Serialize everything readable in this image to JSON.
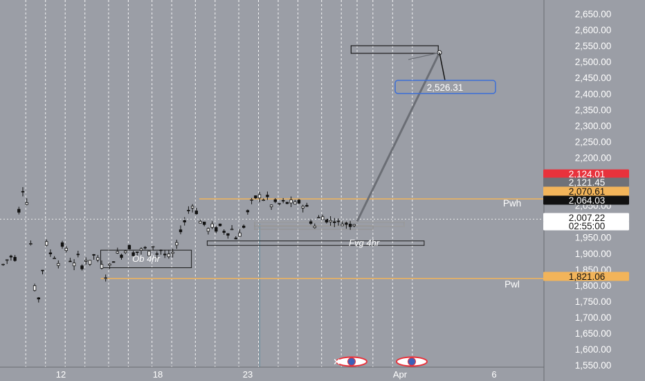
{
  "colors": {
    "background": "#9b9ea6",
    "candle": "#111111",
    "level_line": "#f2b45a",
    "projection": "#6b6e75",
    "target_box": "#3d6fd6",
    "tag_red": "#e8323c",
    "tag_gray": "#6f7178",
    "tag_orange": "#f2b45a",
    "tag_black": "#111111",
    "tag_white": "#ffffff"
  },
  "chart_data": {
    "type": "candlestick",
    "symbol_context": "Gold",
    "ylim": [
      1530,
      2680
    ],
    "y_ticks": [
      "2,650.00",
      "2,600.00",
      "2,550.00",
      "2,500.00",
      "2,450.00",
      "2,400.00",
      "2,350.00",
      "2,300.00",
      "2,250.00",
      "2,200.00",
      "2,150.00",
      "2,100.00",
      "2,050.00",
      "2,000.00",
      "1,950.00",
      "1,900.00",
      "1,850.00",
      "1,800.00",
      "1,750.00",
      "1,700.00",
      "1,650.00",
      "1,600.00",
      "1,550.00"
    ],
    "x_ticks": [
      {
        "label": "12",
        "bar": 19
      },
      {
        "label": "18",
        "bar": 52
      },
      {
        "label": "23",
        "bar": 80
      },
      {
        "label": "Apr",
        "bar": 131
      },
      {
        "label": "6",
        "bar": 163
      }
    ],
    "bar_count": 180,
    "anchor_points": [
      [
        0,
        1865
      ],
      [
        1,
        1880
      ],
      [
        2,
        1890
      ],
      [
        3,
        1885
      ],
      [
        4,
        2035
      ],
      [
        5,
        2100
      ],
      [
        6,
        2060
      ],
      [
        7,
        1930
      ],
      [
        8,
        1790
      ],
      [
        9,
        1760
      ],
      [
        10,
        1850
      ],
      [
        11,
        1930
      ],
      [
        12,
        1900
      ],
      [
        13,
        1890
      ],
      [
        14,
        1870
      ],
      [
        15,
        1925
      ],
      [
        16,
        1910
      ],
      [
        17,
        1880
      ],
      [
        18,
        1865
      ],
      [
        19,
        1890
      ],
      [
        20,
        1860
      ],
      [
        21,
        1880
      ],
      [
        22,
        1870
      ],
      [
        23,
        1895
      ],
      [
        24,
        1880
      ],
      [
        25,
        1860
      ],
      [
        26,
        1830
      ],
      [
        27,
        1860
      ],
      [
        28,
        1880
      ],
      [
        29,
        1900
      ],
      [
        30,
        1895
      ],
      [
        31,
        1910
      ],
      [
        32,
        1920
      ],
      [
        33,
        1900
      ],
      [
        34,
        1905
      ],
      [
        35,
        1910
      ],
      [
        36,
        1915
      ],
      [
        37,
        1900
      ],
      [
        38,
        1925
      ],
      [
        39,
        1900
      ],
      [
        40,
        1910
      ],
      [
        41,
        1895
      ],
      [
        42,
        1890
      ],
      [
        43,
        1900
      ],
      [
        44,
        1925
      ],
      [
        45,
        1975
      ],
      [
        46,
        2000
      ],
      [
        47,
        2035
      ],
      [
        48,
        2050
      ],
      [
        49,
        2030
      ],
      [
        50,
        2000
      ],
      [
        51,
        1990
      ],
      [
        52,
        1975
      ],
      [
        53,
        1985
      ],
      [
        54,
        1975
      ],
      [
        55,
        1985
      ],
      [
        56,
        1970
      ],
      [
        57,
        1965
      ],
      [
        58,
        1975
      ],
      [
        59,
        1950
      ],
      [
        60,
        1960
      ],
      [
        61,
        1985
      ],
      [
        62,
        2030
      ],
      [
        63,
        2060
      ],
      [
        64,
        2075
      ],
      [
        65,
        2080
      ],
      [
        66,
        2070
      ],
      [
        67,
        2075
      ],
      [
        68,
        2050
      ],
      [
        69,
        2060
      ],
      [
        70,
        2055
      ],
      [
        71,
        2060
      ],
      [
        72,
        2058
      ],
      [
        73,
        2060
      ],
      [
        74,
        2055
      ],
      [
        75,
        2060
      ],
      [
        76,
        2050
      ],
      [
        77,
        2045
      ],
      [
        78,
        2000
      ],
      [
        79,
        1985
      ],
      [
        80,
        2010
      ],
      [
        81,
        2015
      ],
      [
        82,
        2005
      ],
      [
        83,
        2000
      ],
      [
        84,
        2005
      ],
      [
        85,
        1995
      ],
      [
        86,
        1995
      ],
      [
        87,
        1993
      ],
      [
        88,
        1990
      ],
      [
        89,
        1995
      ]
    ],
    "last_bar": 89,
    "current_price": 2007.22,
    "countdown": "02:55:00",
    "price_tags": [
      {
        "value": 2124.01,
        "label": "2,124.01",
        "style": "red"
      },
      {
        "value": 2108.5,
        "label": "2,121.45",
        "style": "gray"
      },
      {
        "value": 2073.5,
        "label": "2,070.61",
        "style": "orange"
      },
      {
        "value": 2064.03,
        "label": "2,064.03",
        "style": "black"
      },
      {
        "value": 2007.22,
        "label": "2,007.22",
        "style": "white"
      },
      {
        "value": 1983.0,
        "label": "02:55:00",
        "style": "white"
      },
      {
        "value": 1821.06,
        "label": "1,821.06",
        "style": "orange"
      }
    ],
    "levels": [
      {
        "name": "Pwh",
        "value": 2070.61,
        "from_bar": 50
      },
      {
        "name": "Pwl",
        "value": 1821.06,
        "from_bar": 25
      }
    ],
    "zones": [
      {
        "label": "Ob 4hr",
        "from_bar": 25,
        "to_bar": 48,
        "top": 1910,
        "bottom": 1855
      },
      {
        "label": "Fvg 4hr",
        "from_bar": 52,
        "to_bar": 107,
        "top": 1939,
        "bottom": 1925
      },
      {
        "label": "",
        "from_bar": 64,
        "to_bar": 102,
        "top": 1998,
        "bottom": 1985
      },
      {
        "label": "",
        "from_bar": 64,
        "to_bar": 94,
        "top": 1987,
        "bottom": 1975
      }
    ],
    "projection": {
      "from_bar": 90,
      "from_value": 2000,
      "to_bar": 110,
      "to_value": 2526.31
    },
    "target": {
      "label": "2,526.31",
      "value": 2526.31,
      "box_from_bar": 89,
      "box_to_bar": 111,
      "box_top": 2560,
      "box_bottom": 2535
    },
    "vertical_dotted_bars": [
      6,
      11,
      16,
      21,
      27,
      32,
      38,
      43,
      49,
      54,
      60,
      65,
      70,
      75,
      81,
      86,
      90,
      94,
      99,
      104
    ]
  },
  "right_labels": {
    "pwh": "Pwh",
    "pwl": "Pwl"
  },
  "zone_labels": {
    "ob": "Ob 4hr",
    "fvg": "Fvg 4hr"
  },
  "event_icons": [
    "us-flag-event-icon",
    "us-flag-event-icon"
  ]
}
